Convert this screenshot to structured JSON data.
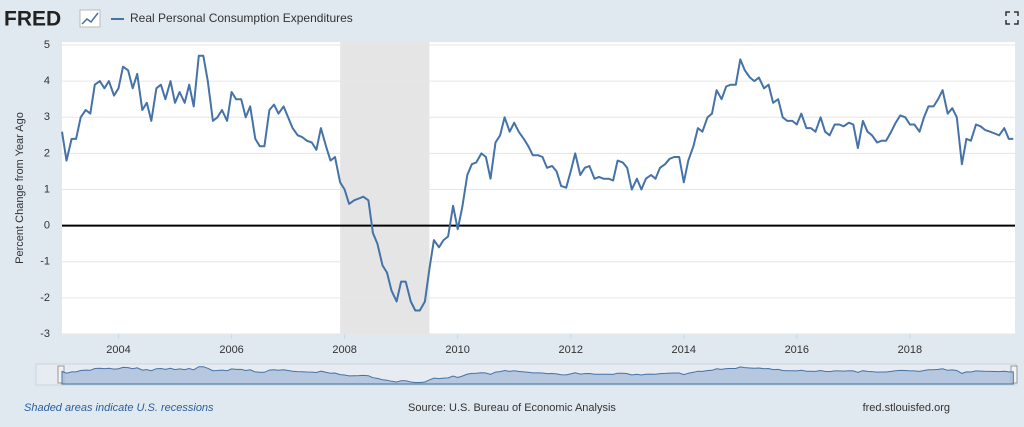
{
  "header": {
    "logo": "FRED"
  },
  "chart_data": {
    "type": "line",
    "ylabel": "Percent Change from Year Ago",
    "xlim": [
      2003,
      2019.86
    ],
    "xticks": [
      2004,
      2006,
      2008,
      2010,
      2012,
      2014,
      2016,
      2018
    ],
    "ylim": [
      -3,
      5
    ],
    "yticks": [
      -3,
      -2,
      -1,
      0,
      1,
      2,
      3,
      4,
      5
    ],
    "grid": true,
    "zero_line": true,
    "recessions": [
      [
        2007.92,
        2009.5
      ]
    ],
    "x": [
      2003.0,
      2003.08,
      2003.17,
      2003.25,
      2003.33,
      2003.42,
      2003.5,
      2003.58,
      2003.67,
      2003.75,
      2003.83,
      2003.92,
      2004.0,
      2004.08,
      2004.17,
      2004.25,
      2004.33,
      2004.42,
      2004.5,
      2004.58,
      2004.67,
      2004.75,
      2004.83,
      2004.92,
      2005.0,
      2005.08,
      2005.17,
      2005.25,
      2005.33,
      2005.42,
      2005.5,
      2005.58,
      2005.67,
      2005.75,
      2005.83,
      2005.92,
      2006.0,
      2006.08,
      2006.17,
      2006.25,
      2006.33,
      2006.42,
      2006.5,
      2006.58,
      2006.67,
      2006.75,
      2006.83,
      2006.92,
      2007.0,
      2007.08,
      2007.17,
      2007.25,
      2007.33,
      2007.42,
      2007.5,
      2007.58,
      2007.67,
      2007.75,
      2007.83,
      2007.92,
      2008.0,
      2008.08,
      2008.17,
      2008.25,
      2008.33,
      2008.42,
      2008.5,
      2008.58,
      2008.67,
      2008.75,
      2008.83,
      2008.92,
      2009.0,
      2009.08,
      2009.17,
      2009.25,
      2009.33,
      2009.42,
      2009.5,
      2009.58,
      2009.67,
      2009.75,
      2009.83,
      2009.92,
      2010.0,
      2010.08,
      2010.17,
      2010.25,
      2010.33,
      2010.42,
      2010.5,
      2010.58,
      2010.67,
      2010.75,
      2010.83,
      2010.92,
      2011.0,
      2011.08,
      2011.17,
      2011.25,
      2011.33,
      2011.42,
      2011.5,
      2011.58,
      2011.67,
      2011.75,
      2011.83,
      2011.92,
      2012.0,
      2012.08,
      2012.17,
      2012.25,
      2012.33,
      2012.42,
      2012.5,
      2012.58,
      2012.67,
      2012.75,
      2012.83,
      2012.92,
      2013.0,
      2013.08,
      2013.17,
      2013.25,
      2013.33,
      2013.42,
      2013.5,
      2013.58,
      2013.67,
      2013.75,
      2013.83,
      2013.92,
      2014.0,
      2014.08,
      2014.17,
      2014.25,
      2014.33,
      2014.42,
      2014.5,
      2014.58,
      2014.67,
      2014.75,
      2014.83,
      2014.92,
      2015.0,
      2015.08,
      2015.17,
      2015.25,
      2015.33,
      2015.42,
      2015.5,
      2015.58,
      2015.67,
      2015.75,
      2015.83,
      2015.92,
      2016.0,
      2016.08,
      2016.17,
      2016.25,
      2016.33,
      2016.42,
      2016.5,
      2016.58,
      2016.67,
      2016.75,
      2016.83,
      2016.92,
      2017.0,
      2017.08,
      2017.17,
      2017.25,
      2017.33,
      2017.42,
      2017.5,
      2017.58,
      2017.67,
      2017.75,
      2017.83,
      2017.92,
      2018.0,
      2018.08,
      2018.17,
      2018.25,
      2018.33,
      2018.42,
      2018.5,
      2018.58,
      2018.67,
      2018.75,
      2018.83,
      2018.92,
      2019.0,
      2019.08,
      2019.17,
      2019.25,
      2019.33,
      2019.42,
      2019.5,
      2019.58,
      2019.67,
      2019.75,
      2019.83
    ],
    "series": [
      {
        "name": "Real Personal Consumption Expenditures",
        "color": "#4572a7",
        "values": [
          2.6,
          1.8,
          2.4,
          2.4,
          3.0,
          3.2,
          3.1,
          3.9,
          4.0,
          3.8,
          4.0,
          3.6,
          3.8,
          4.4,
          4.3,
          3.8,
          4.2,
          3.2,
          3.4,
          2.9,
          3.8,
          3.9,
          3.5,
          4.0,
          3.4,
          3.7,
          3.4,
          3.9,
          3.3,
          4.7,
          4.7,
          4.0,
          2.9,
          3.0,
          3.2,
          2.9,
          3.7,
          3.5,
          3.5,
          3.0,
          3.3,
          2.4,
          2.2,
          2.2,
          3.2,
          3.35,
          3.1,
          3.3,
          3.0,
          2.7,
          2.5,
          2.45,
          2.35,
          2.3,
          2.1,
          2.7,
          2.2,
          1.8,
          1.9,
          1.2,
          1.0,
          0.6,
          0.7,
          0.75,
          0.8,
          0.7,
          -0.2,
          -0.5,
          -1.1,
          -1.3,
          -1.8,
          -2.1,
          -1.55,
          -1.55,
          -2.1,
          -2.35,
          -2.35,
          -2.1,
          -1.2,
          -0.4,
          -0.6,
          -0.4,
          -0.3,
          0.55,
          -0.1,
          0.5,
          1.4,
          1.7,
          1.75,
          2.0,
          1.9,
          1.3,
          2.3,
          2.5,
          3.0,
          2.6,
          2.85,
          2.6,
          2.4,
          2.2,
          1.95,
          1.95,
          1.9,
          1.6,
          1.65,
          1.5,
          1.1,
          1.05,
          1.5,
          2.0,
          1.4,
          1.6,
          1.65,
          1.3,
          1.35,
          1.3,
          1.3,
          1.25,
          1.8,
          1.75,
          1.6,
          1.0,
          1.3,
          1.0,
          1.3,
          1.4,
          1.3,
          1.6,
          1.7,
          1.85,
          1.9,
          1.9,
          1.2,
          1.8,
          2.2,
          2.7,
          2.6,
          3.0,
          3.1,
          3.75,
          3.5,
          3.85,
          3.9,
          3.9,
          4.6,
          4.3,
          4.1,
          4.0,
          4.1,
          3.8,
          3.9,
          3.4,
          3.5,
          3.0,
          2.9,
          2.9,
          2.8,
          3.1,
          2.7,
          2.7,
          2.6,
          3.0,
          2.6,
          2.5,
          2.8,
          2.8,
          2.75,
          2.85,
          2.8,
          2.15,
          2.9,
          2.6,
          2.5,
          2.3,
          2.35,
          2.35,
          2.6,
          2.85,
          3.05,
          3.0,
          2.8,
          2.8,
          2.6,
          3.0,
          3.3,
          3.3,
          3.5,
          3.75,
          3.1,
          3.25,
          3.0,
          1.7,
          2.4,
          2.35,
          2.8,
          2.75,
          2.65,
          2.6,
          2.55,
          2.5,
          2.7,
          2.4,
          2.4
        ]
      }
    ]
  },
  "footer": {
    "note": "Shaded areas indicate U.S. recessions",
    "source": "Source: U.S. Bureau of Economic Analysis",
    "site": "fred.stlouisfed.org"
  }
}
